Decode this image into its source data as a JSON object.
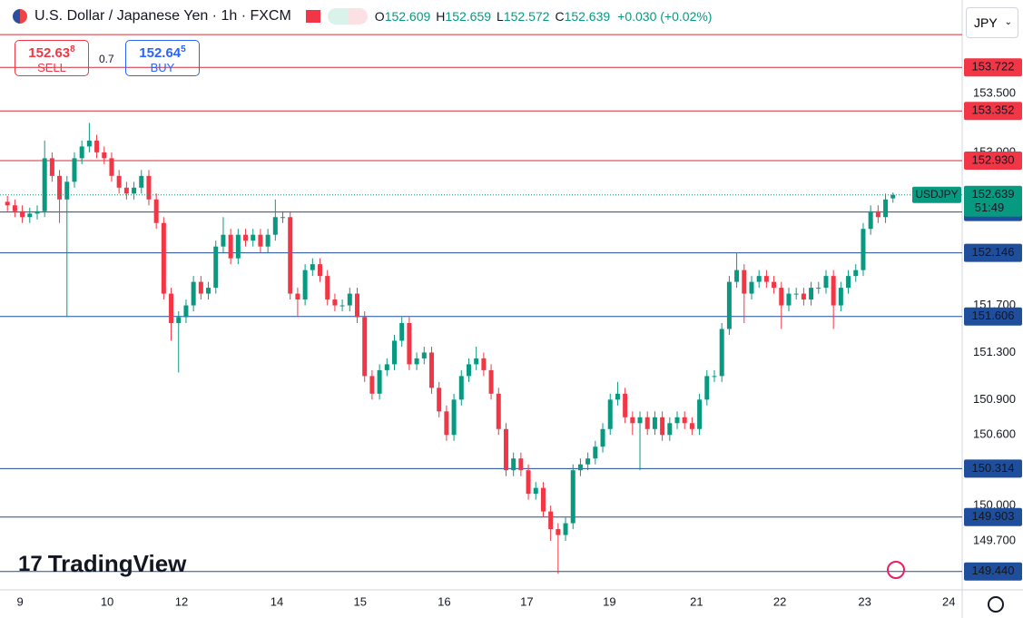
{
  "header": {
    "title": "U.S. Dollar / Japanese Yen · 1h · FXCM",
    "ohlc_labels": [
      "O",
      "H",
      "L",
      "C"
    ],
    "change": "+0.030 (+0.02%)",
    "sell_price": "152.63",
    "sell_pip": "8",
    "sell_label": "SELL",
    "spread": "0.7",
    "buy_price": "152.64",
    "buy_pip": "5",
    "buy_label": "BUY",
    "currency": "JPY",
    "logo": "TradingView"
  },
  "chart_data": {
    "type": "candlestick",
    "symbol": "USDJPY",
    "countdown": "51:49",
    "up_color": "#089981",
    "down_color": "#f23645",
    "open": [
      152.58,
      152.55,
      152.5,
      152.45,
      152.48,
      152.5,
      152.95,
      152.8,
      152.6,
      152.75,
      152.95,
      153.05,
      153.1,
      153.0,
      152.95,
      152.8,
      152.7,
      152.65,
      152.7,
      152.8,
      152.6,
      152.4,
      151.8,
      151.55,
      151.6,
      151.7,
      151.9,
      151.8,
      151.85,
      152.2,
      152.3,
      152.1,
      152.3,
      152.25,
      152.3,
      152.2,
      152.3,
      152.45,
      152.45,
      151.8,
      151.75,
      152.0,
      152.05,
      151.95,
      151.75,
      151.7,
      151.7,
      151.8,
      151.6,
      151.1,
      150.95,
      151.15,
      151.2,
      151.4,
      151.55,
      151.2,
      151.25,
      151.3,
      151.0,
      150.8,
      150.6,
      150.9,
      151.1,
      151.2,
      151.25,
      151.15,
      150.95,
      150.65,
      150.3,
      150.4,
      150.3,
      150.1,
      150.15,
      149.95,
      149.8,
      149.75,
      149.85,
      150.3,
      150.35,
      150.4,
      150.5,
      150.65,
      150.9,
      150.95,
      150.75,
      150.7,
      150.75,
      150.65,
      150.75,
      150.6,
      150.7,
      150.75,
      150.7,
      150.65,
      150.9,
      151.1,
      151.1,
      151.5,
      151.9,
      152.0,
      151.8,
      151.9,
      151.95,
      151.9,
      151.85,
      151.7,
      151.8,
      151.8,
      151.75,
      151.85,
      151.85,
      151.95,
      151.7,
      151.85,
      151.95,
      152.0,
      152.35,
      152.5,
      152.45,
      152.609
    ],
    "high": [
      152.63,
      152.6,
      152.55,
      152.53,
      152.55,
      153.1,
      153.0,
      152.85,
      152.8,
      153.0,
      153.1,
      153.25,
      153.15,
      153.05,
      153.0,
      152.85,
      152.75,
      152.75,
      152.85,
      152.85,
      152.65,
      152.45,
      151.85,
      151.65,
      151.75,
      151.95,
      151.95,
      151.9,
      152.25,
      152.45,
      152.35,
      152.35,
      152.35,
      152.35,
      152.35,
      152.35,
      152.6,
      152.5,
      152.5,
      151.85,
      152.05,
      152.1,
      152.1,
      152.0,
      151.8,
      151.75,
      151.85,
      151.85,
      151.65,
      151.15,
      151.2,
      151.25,
      151.45,
      151.6,
      151.6,
      151.3,
      151.35,
      151.35,
      151.05,
      150.85,
      150.95,
      151.15,
      151.25,
      151.35,
      151.3,
      151.2,
      151.0,
      150.7,
      150.45,
      150.45,
      150.35,
      150.2,
      150.2,
      150.0,
      149.85,
      149.9,
      150.35,
      150.4,
      150.45,
      150.55,
      150.7,
      150.95,
      151.05,
      151.0,
      150.8,
      150.8,
      150.8,
      150.8,
      150.8,
      150.75,
      150.8,
      150.8,
      150.75,
      150.95,
      151.15,
      151.15,
      151.55,
      151.95,
      152.15,
      152.05,
      151.95,
      152.0,
      152.0,
      151.95,
      151.9,
      151.85,
      151.85,
      151.85,
      151.9,
      151.9,
      152.0,
      152.0,
      151.9,
      152.0,
      152.05,
      152.4,
      152.55,
      152.55,
      152.65,
      152.659
    ],
    "low": [
      152.5,
      152.45,
      152.4,
      152.4,
      152.43,
      152.45,
      152.75,
      152.4,
      151.6,
      152.7,
      152.9,
      153.0,
      152.95,
      152.9,
      152.75,
      152.65,
      152.6,
      152.6,
      152.65,
      152.55,
      152.35,
      151.75,
      151.4,
      151.13,
      151.55,
      151.65,
      151.75,
      151.75,
      151.8,
      152.15,
      152.05,
      152.05,
      152.2,
      152.2,
      152.15,
      152.15,
      152.25,
      152.4,
      151.75,
      151.6,
      151.7,
      151.95,
      151.9,
      151.7,
      151.65,
      151.65,
      151.65,
      151.55,
      151.05,
      150.9,
      150.9,
      151.1,
      151.15,
      151.35,
      151.15,
      151.15,
      151.2,
      150.95,
      150.75,
      150.55,
      150.55,
      150.85,
      151.05,
      151.15,
      151.1,
      150.9,
      150.6,
      150.25,
      150.25,
      150.25,
      150.05,
      150.05,
      149.9,
      149.7,
      149.42,
      149.7,
      149.8,
      150.25,
      150.3,
      150.35,
      150.45,
      150.6,
      150.85,
      150.7,
      150.6,
      150.3,
      150.6,
      150.6,
      150.55,
      150.55,
      150.65,
      150.65,
      150.6,
      150.6,
      150.85,
      151.05,
      151.05,
      151.45,
      151.85,
      151.55,
      151.75,
      151.85,
      151.85,
      151.8,
      151.5,
      151.65,
      151.75,
      151.7,
      151.7,
      151.8,
      151.8,
      151.5,
      151.65,
      151.8,
      151.9,
      151.95,
      152.3,
      152.4,
      152.4,
      152.572
    ],
    "close": [
      152.55,
      152.5,
      152.45,
      152.48,
      152.5,
      152.95,
      152.8,
      152.6,
      152.75,
      152.95,
      153.05,
      153.1,
      153.0,
      152.95,
      152.8,
      152.7,
      152.65,
      152.7,
      152.8,
      152.6,
      152.4,
      151.8,
      151.55,
      151.6,
      151.7,
      151.9,
      151.8,
      151.85,
      152.2,
      152.3,
      152.1,
      152.3,
      152.25,
      152.3,
      152.2,
      152.3,
      152.45,
      152.45,
      151.8,
      151.75,
      152.0,
      152.05,
      151.95,
      151.75,
      151.7,
      151.7,
      151.8,
      151.6,
      151.1,
      150.95,
      151.15,
      151.2,
      151.4,
      151.55,
      151.2,
      151.25,
      151.3,
      151.0,
      150.8,
      150.6,
      150.9,
      151.1,
      151.2,
      151.25,
      151.15,
      150.95,
      150.65,
      150.3,
      150.4,
      150.3,
      150.1,
      150.15,
      149.95,
      149.8,
      149.75,
      149.85,
      150.3,
      150.35,
      150.4,
      150.5,
      150.65,
      150.9,
      150.95,
      150.75,
      150.7,
      150.75,
      150.65,
      150.75,
      150.6,
      150.7,
      150.75,
      150.7,
      150.65,
      150.9,
      151.1,
      151.1,
      151.5,
      151.9,
      152.0,
      151.8,
      151.9,
      151.95,
      151.9,
      151.85,
      151.7,
      151.8,
      151.8,
      151.75,
      151.85,
      151.85,
      151.95,
      151.7,
      151.85,
      151.95,
      152.0,
      152.35,
      152.5,
      152.45,
      152.6,
      152.639
    ],
    "xlim": [
      -1,
      128.3
    ],
    "xticks": [
      {
        "value": 1.7,
        "label": "9"
      },
      {
        "value": 13.4,
        "label": "10"
      },
      {
        "value": 23.4,
        "label": "12"
      },
      {
        "value": 36.2,
        "label": "14"
      },
      {
        "value": 47.4,
        "label": "15"
      },
      {
        "value": 58.7,
        "label": "16"
      },
      {
        "value": 69.8,
        "label": "17"
      },
      {
        "value": 80.9,
        "label": "19"
      },
      {
        "value": 92.6,
        "label": "21"
      },
      {
        "value": 103.8,
        "label": "22"
      },
      {
        "value": 115.2,
        "label": "23"
      },
      {
        "value": 126.5,
        "label": "24"
      }
    ],
    "ylim": [
      149.284,
      154.294
    ],
    "yticks": [
      {
        "value": 153.5,
        "label": "153.500"
      },
      {
        "value": 153.0,
        "label": "153.000"
      },
      {
        "value": 151.7,
        "label": "151.700"
      },
      {
        "value": 151.3,
        "label": "151.300"
      },
      {
        "value": 150.9,
        "label": "150.900"
      },
      {
        "value": 150.6,
        "label": "150.600"
      },
      {
        "value": 150.0,
        "label": "150.000"
      },
      {
        "value": 149.7,
        "label": "149.700"
      }
    ],
    "resistance": {
      "color": "#d32f3a",
      "label_color": "#f23645",
      "levels": [
        {
          "value": 154.0,
          "label": null
        },
        153.722,
        153.352,
        {
          "value": 152.93,
          "label": "152.930"
        }
      ]
    },
    "support": {
      "color": "#1f4e9c",
      "label_color": "#1f4e9c",
      "levels": [
        152.493,
        152.146,
        151.606,
        150.314,
        149.903,
        {
          "value": 149.44,
          "label": "149.440"
        }
      ]
    },
    "grid": false
  }
}
